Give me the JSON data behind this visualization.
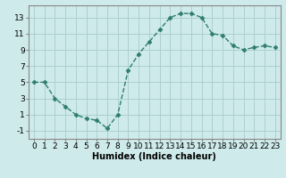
{
  "x": [
    0,
    1,
    2,
    3,
    4,
    5,
    6,
    7,
    8,
    9,
    10,
    11,
    12,
    13,
    14,
    15,
    16,
    17,
    18,
    19,
    20,
    21,
    22,
    23
  ],
  "y": [
    5,
    5,
    3,
    2,
    1,
    0.5,
    0.3,
    -0.7,
    1,
    6.5,
    8.5,
    10,
    11.5,
    13,
    13.5,
    13.5,
    13,
    11,
    10.8,
    9.5,
    9,
    9.3,
    9.5,
    9.3
  ],
  "line_color": "#2e7d6e",
  "marker": "D",
  "marker_size": 2.5,
  "bg_color": "#ceeaea",
  "grid_color": "#a8cccc",
  "xlabel": "Humidex (Indice chaleur)",
  "xlim": [
    -0.5,
    23.5
  ],
  "ylim": [
    -2,
    14.5
  ],
  "xticks": [
    0,
    1,
    2,
    3,
    4,
    5,
    6,
    7,
    8,
    9,
    10,
    11,
    12,
    13,
    14,
    15,
    16,
    17,
    18,
    19,
    20,
    21,
    22,
    23
  ],
  "yticks": [
    -1,
    1,
    3,
    5,
    7,
    9,
    11,
    13
  ],
  "xlabel_fontsize": 7,
  "tick_fontsize": 6.5,
  "axis_color": "#888888",
  "linewidth": 1.0
}
